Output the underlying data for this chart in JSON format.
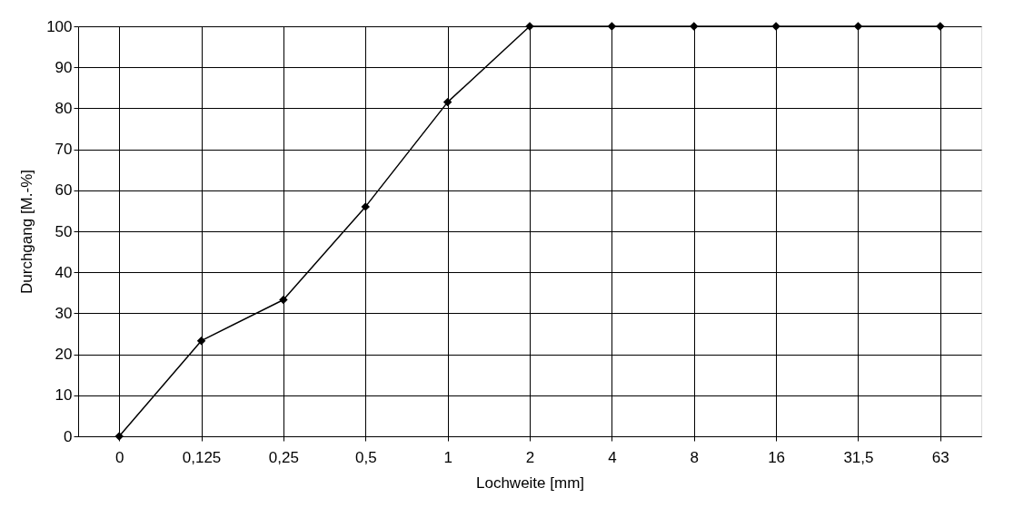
{
  "chart_data": {
    "type": "line",
    "xlabel": "Lochweite [mm]",
    "ylabel": "Durchgang [M.-%]",
    "categories": [
      "0",
      "0,125",
      "0,25",
      "0,5",
      "1",
      "2",
      "4",
      "8",
      "16",
      "31,5",
      "63"
    ],
    "series": [
      {
        "color": "#000000",
        "values": [
          0,
          23.3,
          33.3,
          56,
          81.5,
          100,
          100,
          100,
          100,
          100,
          100
        ]
      }
    ],
    "ylim": [
      0,
      100
    ],
    "yticks": [
      0,
      10,
      20,
      30,
      40,
      50,
      60,
      70,
      80,
      90,
      100
    ],
    "grid": true,
    "marker": "diamond",
    "line_style": "solid"
  }
}
